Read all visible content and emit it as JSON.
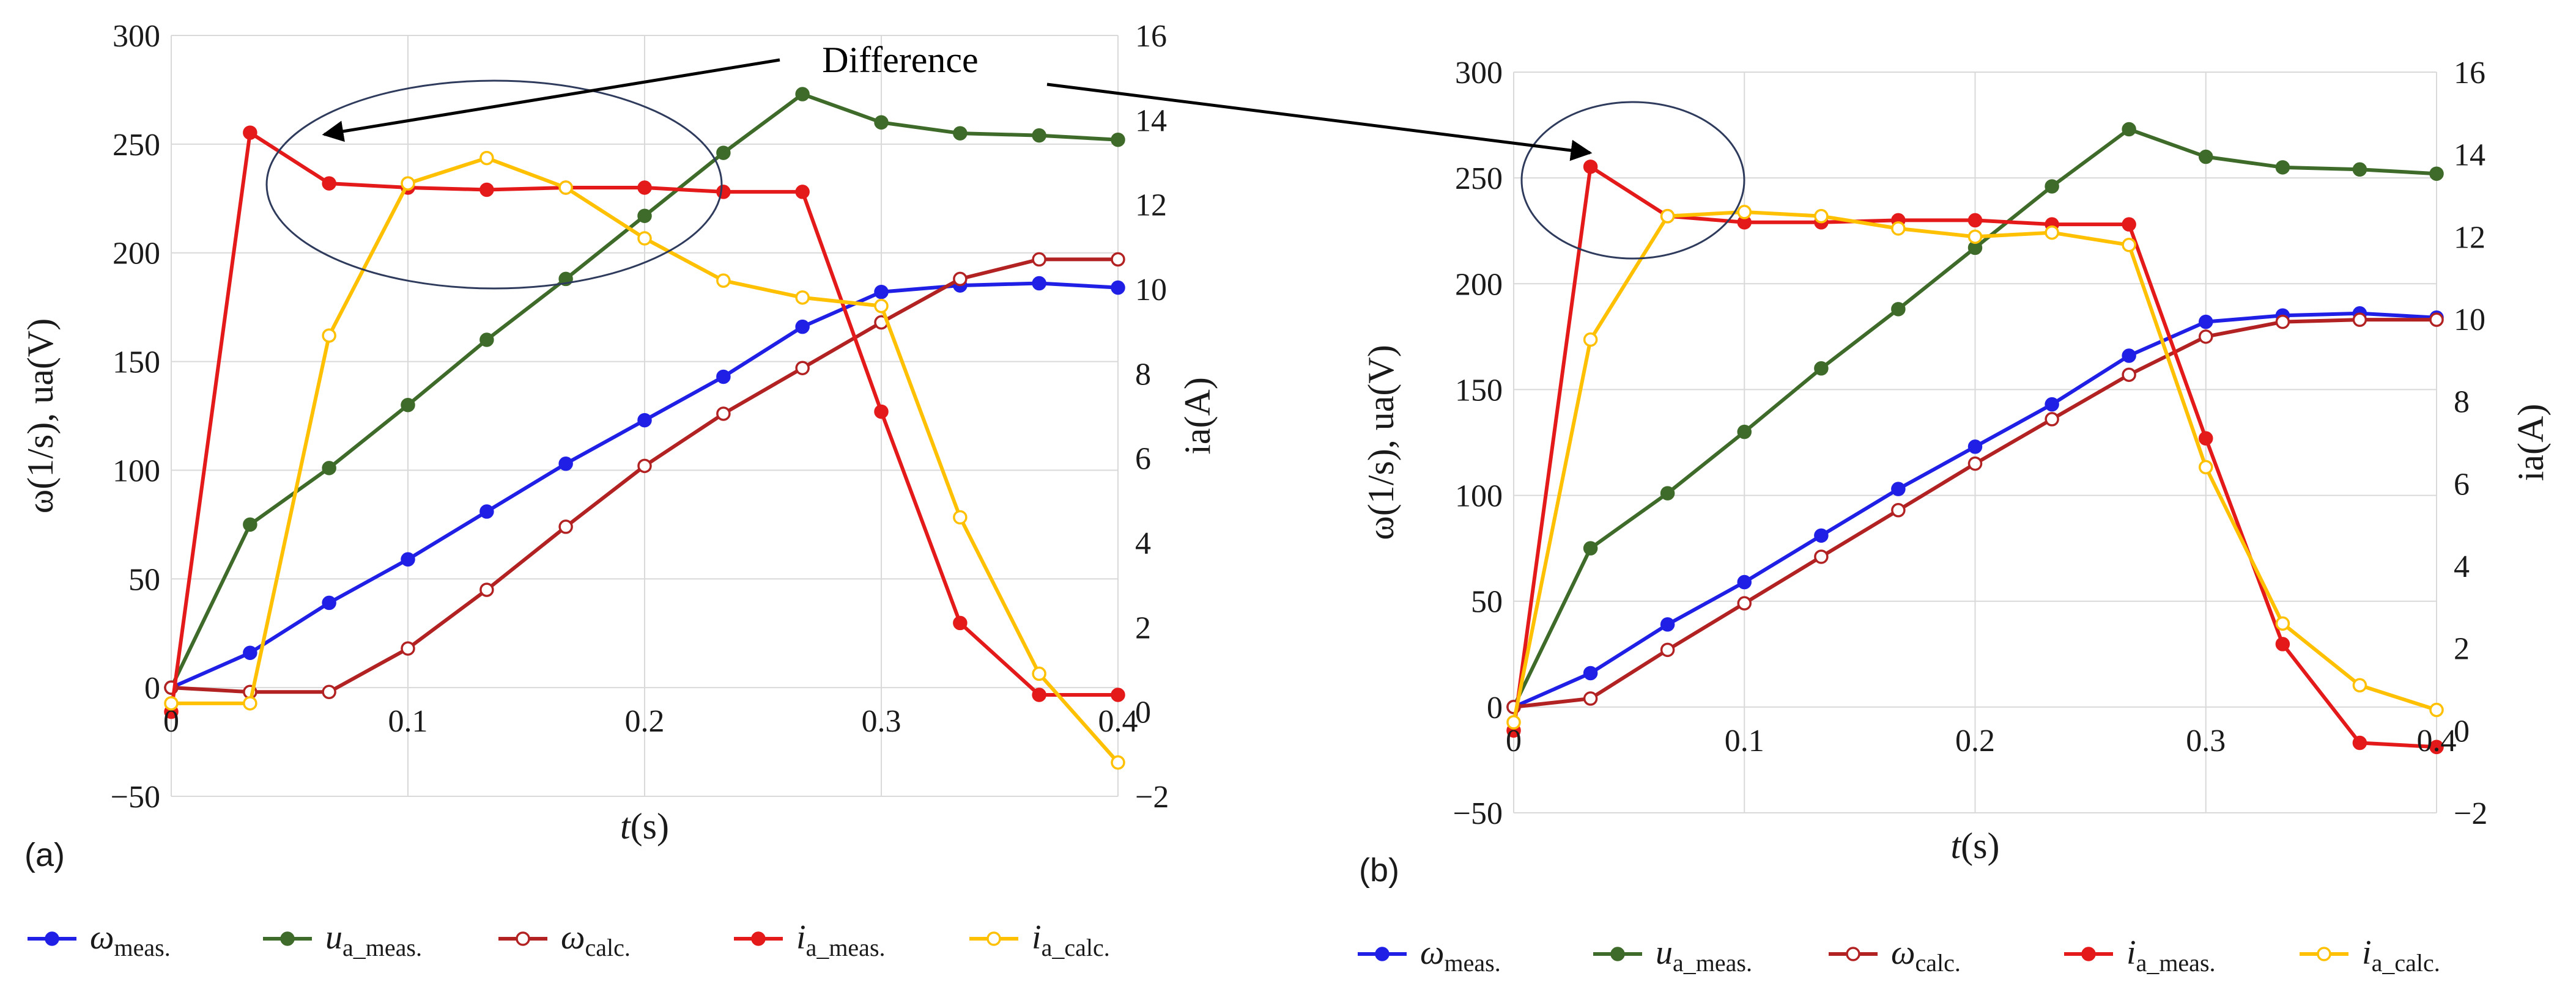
{
  "annotation": {
    "text": "Difference"
  },
  "legend_entries": [
    {
      "key": "omega_meas",
      "sym": "ω",
      "sub": "meas.",
      "italic_sub": false,
      "color": "#1f1fe6",
      "filled": true
    },
    {
      "key": "ua_meas",
      "sym": "u",
      "sub": "a_meas.",
      "italic_sub": false,
      "color": "#3f6b2a",
      "filled": true
    },
    {
      "key": "omega_calc",
      "sym": "ω",
      "sub": "calc.",
      "italic_sub": false,
      "color": "#b22222",
      "filled": false
    },
    {
      "key": "ia_meas",
      "sym": "i",
      "sub": "a_meas.",
      "italic_sub": false,
      "color": "#e41a1a",
      "filled": true
    },
    {
      "key": "ia_calc",
      "sym": "i",
      "sub": "a_calc.",
      "italic_sub": false,
      "color": "#ffc000",
      "filled": false
    }
  ],
  "chart_data": [
    {
      "type": "line",
      "panel_label": "(a)",
      "xlabel": "t(s)",
      "ylabel": "ω(1/s), ua(V)",
      "y2label": "ia(A)",
      "xlim": [
        0,
        0.4
      ],
      "ylim": [
        -50,
        300
      ],
      "y2lim": [
        -2,
        16
      ],
      "xticks": [
        "0",
        "0.1",
        "0.2",
        "0.3",
        "0.4"
      ],
      "yticks": [
        "−50",
        "0",
        "50",
        "100",
        "150",
        "200",
        "250",
        "300"
      ],
      "y2ticks": [
        "−2",
        "0",
        "2",
        "4",
        "6",
        "8",
        "10",
        "12",
        "14",
        "16"
      ],
      "x": [
        0,
        0.0333,
        0.0667,
        0.1,
        0.1333,
        0.1667,
        0.2,
        0.2333,
        0.2667,
        0.3,
        0.3333,
        0.3667,
        0.4
      ],
      "series": [
        {
          "name": "ω meas.",
          "axis": "left",
          "values": [
            0,
            16,
            39,
            59,
            81,
            103,
            123,
            143,
            166,
            182,
            185,
            186,
            184
          ]
        },
        {
          "name": "u a_meas.",
          "axis": "left",
          "values": [
            0,
            75,
            101,
            130,
            160,
            188,
            217,
            246,
            273,
            260,
            255,
            254,
            252
          ]
        },
        {
          "name": "ω calc.",
          "axis": "left",
          "values": [
            0,
            -2,
            -2,
            18,
            45,
            74,
            102,
            126,
            147,
            168,
            188,
            197,
            197
          ]
        },
        {
          "name": "i a_meas.",
          "axis": "right",
          "values": [
            0,
            13.7,
            12.5,
            12.4,
            12.35,
            12.4,
            12.4,
            12.3,
            12.3,
            7.1,
            2.1,
            0.4,
            0.4
          ]
        },
        {
          "name": "i a_calc.",
          "axis": "right",
          "values": [
            0.2,
            0.2,
            8.9,
            12.5,
            13.1,
            12.4,
            11.2,
            10.2,
            9.8,
            9.6,
            4.6,
            0.9,
            -1.2
          ]
        }
      ]
    },
    {
      "type": "line",
      "panel_label": "(b)",
      "xlabel": "t(s)",
      "ylabel": "ω(1/s), ua(V)",
      "y2label": "ia(A)",
      "xlim": [
        0,
        0.4
      ],
      "ylim": [
        -50,
        300
      ],
      "y2lim": [
        -2,
        16
      ],
      "xticks": [
        "0",
        "0.1",
        "0.2",
        "0.3",
        "0.4"
      ],
      "yticks": [
        "−50",
        "0",
        "50",
        "100",
        "150",
        "200",
        "250",
        "300"
      ],
      "y2ticks": [
        "−2",
        "0",
        "2",
        "4",
        "6",
        "8",
        "10",
        "12",
        "14",
        "16"
      ],
      "x": [
        0,
        0.0333,
        0.0667,
        0.1,
        0.1333,
        0.1667,
        0.2,
        0.2333,
        0.2667,
        0.3,
        0.3333,
        0.3667,
        0.4
      ],
      "series": [
        {
          "name": "ω meas.",
          "axis": "left",
          "values": [
            0,
            16,
            39,
            59,
            81,
            103,
            123,
            143,
            166,
            182,
            185,
            186,
            184
          ]
        },
        {
          "name": "u a_meas.",
          "axis": "left",
          "values": [
            0,
            75,
            101,
            130,
            160,
            188,
            217,
            246,
            273,
            260,
            255,
            254,
            252
          ]
        },
        {
          "name": "ω calc.",
          "axis": "left",
          "values": [
            0,
            4,
            27,
            49,
            71,
            93,
            115,
            136,
            157,
            175,
            182,
            183,
            183
          ]
        },
        {
          "name": "i a_meas.",
          "axis": "right",
          "values": [
            0,
            13.7,
            12.5,
            12.35,
            12.35,
            12.4,
            12.4,
            12.3,
            12.3,
            7.1,
            2.1,
            -0.3,
            -0.4
          ]
        },
        {
          "name": "i a_calc.",
          "axis": "right",
          "values": [
            0.2,
            9.5,
            12.5,
            12.6,
            12.5,
            12.2,
            12.0,
            12.1,
            11.8,
            6.4,
            2.6,
            1.1,
            0.5
          ]
        }
      ]
    }
  ]
}
